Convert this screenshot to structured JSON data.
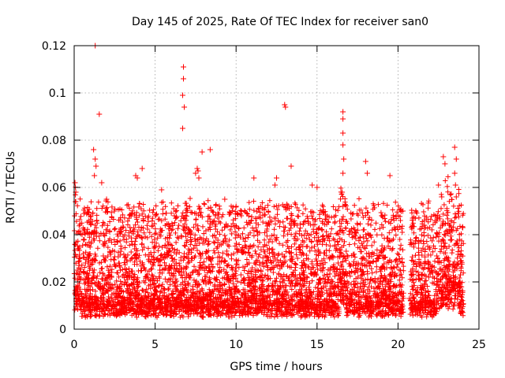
{
  "chart_data": {
    "type": "scatter",
    "title": "Day 145 of 2025, Rate Of TEC Index for receiver san0",
    "xlabel": "GPS time / hours",
    "ylabel": "ROTI / TECUs",
    "xlim": [
      0,
      25
    ],
    "ylim": [
      0,
      0.12
    ],
    "xticks": [
      0,
      5,
      10,
      15,
      20,
      25
    ],
    "xtick_labels": [
      "0",
      "5",
      "10",
      "15",
      "20",
      "25"
    ],
    "yticks": [
      0,
      0.02,
      0.04,
      0.06,
      0.08,
      0.1,
      0.12
    ],
    "ytick_labels": [
      "0",
      "0.02",
      "0.04",
      "0.06",
      "0.08",
      "0.1",
      "0.12"
    ],
    "grid": true,
    "marker": "+",
    "color": "#ff0000",
    "series": [
      {
        "name": "san0",
        "x": [
          1.3,
          1.55,
          6.75,
          6.75,
          6.7,
          6.8,
          6.7,
          13.0,
          13.05,
          16.6,
          16.6,
          16.6,
          16.6,
          16.65,
          16.6,
          16.55,
          16.6,
          1.2,
          1.3,
          1.35,
          1.25,
          1.7,
          0.05,
          0.1,
          0.1,
          7.9,
          7.65,
          8.4,
          3.8,
          3.9,
          4.2,
          7.5,
          7.6,
          7.7,
          13.4,
          12.5,
          12.4,
          11.1,
          18.0,
          18.1,
          19.5,
          20.3,
          22.8,
          22.9,
          23.5,
          23.6,
          23.5,
          23.55,
          23.6,
          22.5,
          22.7,
          24.0,
          5.4,
          14.7,
          15.0,
          2.0,
          9.3,
          10.0,
          0.3,
          0.5,
          1.0,
          1.5,
          2.1,
          2.6,
          3.1,
          3.6,
          4.1,
          4.6,
          5.1,
          5.6,
          6.1,
          6.6,
          7.1,
          7.6,
          8.1,
          8.6,
          9.1,
          9.6,
          10.1,
          10.6,
          11.1,
          11.6,
          12.1,
          12.6,
          13.1,
          13.6,
          14.1,
          14.6,
          15.1,
          15.6,
          16.1,
          16.6,
          17.1,
          17.6,
          18.1,
          18.6,
          19.1,
          19.6,
          20.1,
          20.7,
          21.2,
          21.7,
          22.2,
          22.7,
          23.2,
          23.7,
          0.2,
          0.7,
          1.2,
          1.8,
          2.3,
          2.8,
          3.3,
          3.8,
          4.3,
          4.8,
          5.3,
          5.8,
          6.3,
          6.8,
          7.3,
          7.8,
          8.3,
          8.8,
          9.3,
          9.8,
          10.3,
          10.8,
          11.3,
          11.8,
          12.3,
          12.8,
          13.3,
          13.8,
          14.3,
          14.8,
          15.3,
          15.8,
          16.3,
          16.8,
          17.3,
          17.8,
          18.3,
          18.8,
          19.3,
          19.8,
          20.9,
          21.4,
          21.9,
          22.4,
          22.9,
          23.4,
          23.9
        ],
        "y": [
          0.12,
          0.091,
          0.111,
          0.106,
          0.099,
          0.094,
          0.085,
          0.095,
          0.094,
          0.092,
          0.089,
          0.083,
          0.078,
          0.072,
          0.066,
          0.058,
          0.052,
          0.076,
          0.072,
          0.069,
          0.065,
          0.062,
          0.062,
          0.058,
          0.054,
          0.075,
          0.067,
          0.076,
          0.065,
          0.064,
          0.068,
          0.066,
          0.068,
          0.064,
          0.069,
          0.064,
          0.061,
          0.064,
          0.071,
          0.066,
          0.065,
          0.05,
          0.073,
          0.07,
          0.077,
          0.072,
          0.066,
          0.061,
          0.056,
          0.061,
          0.056,
          0.043,
          0.059,
          0.061,
          0.06,
          0.055,
          0.055,
          0.052,
          0.014,
          0.013,
          0.015,
          0.012,
          0.016,
          0.014,
          0.013,
          0.015,
          0.012,
          0.014,
          0.016,
          0.013,
          0.015,
          0.014,
          0.012,
          0.016,
          0.013,
          0.015,
          0.014,
          0.012,
          0.016,
          0.013,
          0.015,
          0.014,
          0.012,
          0.016,
          0.013,
          0.015,
          0.014,
          0.012,
          0.016,
          0.013,
          0.015,
          0.014,
          0.012,
          0.016,
          0.013,
          0.015,
          0.014,
          0.012,
          0.016,
          0.013,
          0.015,
          0.014,
          0.012,
          0.016,
          0.013,
          0.015,
          0.025,
          0.028,
          0.022,
          0.031,
          0.024,
          0.027,
          0.021,
          0.03,
          0.026,
          0.023,
          0.029,
          0.025,
          0.028,
          0.032,
          0.024,
          0.027,
          0.03,
          0.022,
          0.029,
          0.026,
          0.023,
          0.028,
          0.025,
          0.031,
          0.024,
          0.027,
          0.022,
          0.03,
          0.026,
          0.023,
          0.029,
          0.025,
          0.028,
          0.033,
          0.024,
          0.027,
          0.021,
          0.03,
          0.026,
          0.023,
          0.025,
          0.028,
          0.022,
          0.031,
          0.024,
          0.027,
          0.029
        ]
      }
    ]
  }
}
